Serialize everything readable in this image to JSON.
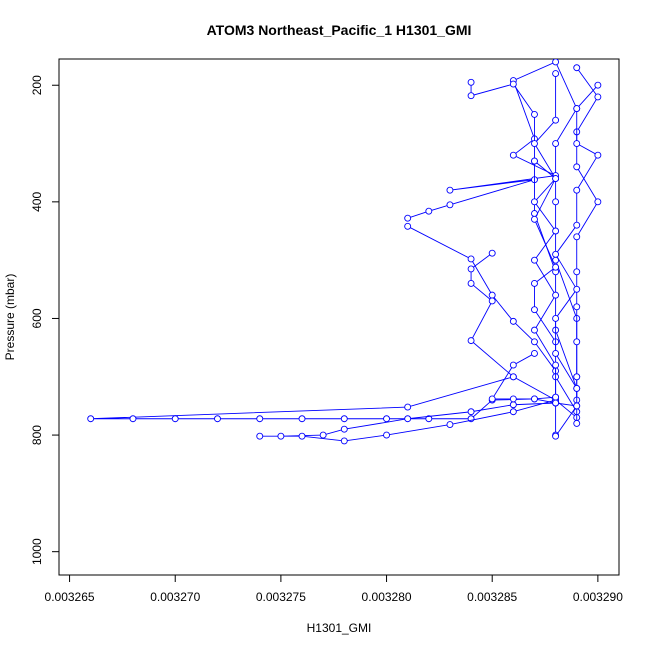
{
  "chart_data": {
    "type": "line",
    "title": "ATOM3 Northeast_Pacific_1 H1301_GMI",
    "xlabel": "H1301_GMI",
    "ylabel": "Pressure (mbar)",
    "xlim": [
      0.0032645,
      0.003291
    ],
    "ylim": [
      1040,
      155
    ],
    "y_reversed": true,
    "grid": false,
    "legend": "none",
    "x_ticks": [
      0.003265,
      0.00327,
      0.003275,
      0.00328,
      0.003285,
      0.00329
    ],
    "x_tick_labels": [
      "0.003265",
      "0.003270",
      "0.003275",
      "0.003280",
      "0.003285",
      "0.003290"
    ],
    "y_ticks": [
      200,
      400,
      600,
      800,
      1000
    ],
    "y_tick_labels": [
      "200",
      "400",
      "600",
      "800",
      "1000"
    ],
    "series": [
      {
        "color": "#0000ff",
        "points": [
          [
            0.003286,
            700
          ],
          [
            0.003281,
            752
          ],
          [
            0.003266,
            772
          ],
          [
            0.003268,
            772
          ],
          [
            0.00327,
            772
          ],
          [
            0.003272,
            772
          ],
          [
            0.003274,
            772
          ],
          [
            0.003276,
            772
          ],
          [
            0.003278,
            772
          ],
          [
            0.00328,
            772
          ],
          [
            0.003282,
            772
          ],
          [
            0.003284,
            772
          ],
          [
            0.003285,
            740
          ],
          [
            0.003287,
            738
          ],
          [
            0.003288,
            735
          ]
        ]
      },
      {
        "color": "#0000ff",
        "points": [
          [
            0.003288,
            745
          ],
          [
            0.003286,
            748
          ],
          [
            0.003284,
            760
          ],
          [
            0.003281,
            772
          ],
          [
            0.003278,
            790
          ],
          [
            0.003277,
            800
          ],
          [
            0.003275,
            802
          ],
          [
            0.003274,
            802
          ],
          [
            0.003276,
            802
          ],
          [
            0.003278,
            810
          ],
          [
            0.00328,
            800
          ],
          [
            0.003283,
            782
          ],
          [
            0.003286,
            760
          ],
          [
            0.003288,
            740
          ],
          [
            0.003288,
            800
          ]
        ]
      },
      {
        "color": "#0000ff",
        "points": [
          [
            0.003281,
            428
          ],
          [
            0.003282,
            416
          ],
          [
            0.003283,
            405
          ],
          [
            0.003287,
            362
          ],
          [
            0.003283,
            380
          ],
          [
            0.003288,
            355
          ],
          [
            0.003286,
            320
          ],
          [
            0.003287,
            292
          ],
          [
            0.003286,
            192
          ],
          [
            0.003288,
            160
          ],
          [
            0.003289,
            240
          ],
          [
            0.003288,
            300
          ],
          [
            0.003288,
            400
          ],
          [
            0.003288,
            500
          ],
          [
            0.003289,
            600
          ],
          [
            0.003289,
            700
          ],
          [
            0.003289,
            750
          ]
        ]
      },
      {
        "color": "#0000ff",
        "points": [
          [
            0.003281,
            442
          ],
          [
            0.003284,
            498
          ],
          [
            0.003285,
            560
          ],
          [
            0.003286,
            605
          ],
          [
            0.003287,
            640
          ],
          [
            0.003288,
            690
          ],
          [
            0.003288,
            740
          ],
          [
            0.003289,
            770
          ]
        ]
      },
      {
        "color": "#0000ff",
        "points": [
          [
            0.003285,
            488
          ],
          [
            0.003284,
            515
          ],
          [
            0.003284,
            540
          ],
          [
            0.003285,
            570
          ],
          [
            0.003284,
            638
          ],
          [
            0.003286,
            700
          ],
          [
            0.003288,
            740
          ]
        ]
      },
      {
        "color": "#0000ff",
        "points": [
          [
            0.003284,
            195
          ],
          [
            0.003284,
            218
          ],
          [
            0.003286,
            198
          ],
          [
            0.003287,
            250
          ],
          [
            0.003287,
            330
          ],
          [
            0.003287,
            420
          ],
          [
            0.003288,
            520
          ],
          [
            0.003288,
            620
          ],
          [
            0.003289,
            720
          ]
        ]
      },
      {
        "color": "#0000ff",
        "points": [
          [
            0.003287,
            330
          ],
          [
            0.003288,
            360
          ],
          [
            0.003287,
            430
          ],
          [
            0.003288,
            512
          ],
          [
            0.003287,
            540
          ],
          [
            0.003287,
            585
          ],
          [
            0.003288,
            640
          ],
          [
            0.003288,
            700
          ],
          [
            0.003289,
            760
          ]
        ]
      },
      {
        "color": "#0000ff",
        "points": [
          [
            0.003289,
            170
          ],
          [
            0.00329,
            220
          ],
          [
            0.003289,
            280
          ],
          [
            0.003289,
            340
          ],
          [
            0.00329,
            400
          ],
          [
            0.003289,
            460
          ],
          [
            0.003289,
            520
          ],
          [
            0.003289,
            580
          ],
          [
            0.003289,
            640
          ],
          [
            0.003289,
            700
          ],
          [
            0.003289,
            740
          ]
        ]
      },
      {
        "color": "#0000ff",
        "points": [
          [
            0.003288,
            180
          ],
          [
            0.003288,
            260
          ],
          [
            0.003287,
            300
          ],
          [
            0.003288,
            360
          ],
          [
            0.003287,
            400
          ],
          [
            0.003288,
            450
          ],
          [
            0.003287,
            500
          ],
          [
            0.003288,
            560
          ],
          [
            0.003287,
            620
          ],
          [
            0.003288,
            680
          ],
          [
            0.003288,
            735
          ]
        ]
      },
      {
        "color": "#0000ff",
        "points": [
          [
            0.00329,
            200
          ],
          [
            0.003289,
            240
          ],
          [
            0.003289,
            300
          ],
          [
            0.00329,
            320
          ],
          [
            0.003289,
            380
          ],
          [
            0.003289,
            440
          ],
          [
            0.003288,
            490
          ],
          [
            0.003289,
            550
          ],
          [
            0.003288,
            600
          ],
          [
            0.003288,
            660
          ],
          [
            0.003289,
            720
          ],
          [
            0.003289,
            780
          ]
        ]
      },
      {
        "color": "#0000ff",
        "points": [
          [
            0.003287,
            660
          ],
          [
            0.003286,
            680
          ],
          [
            0.003285,
            738
          ],
          [
            0.003286,
            738
          ],
          [
            0.003287,
            738
          ],
          [
            0.003288,
            745
          ],
          [
            0.003289,
            750
          ],
          [
            0.003288,
            802
          ]
        ]
      }
    ]
  }
}
